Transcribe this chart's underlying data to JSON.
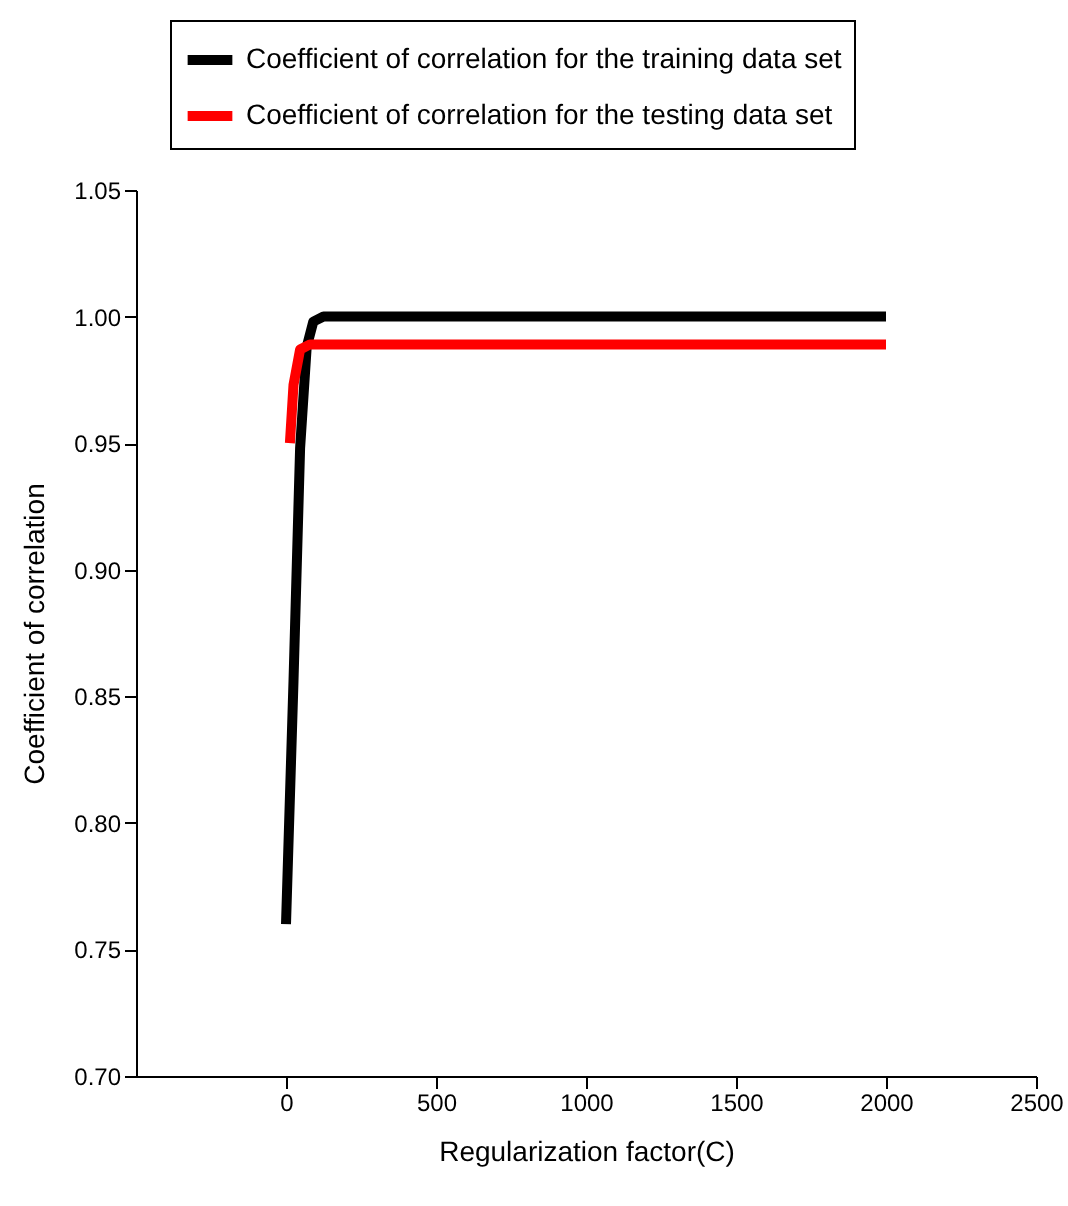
{
  "chart_data": {
    "type": "line",
    "xlabel": "Regularization factor(C)",
    "ylabel": "Coefficient of correlation",
    "series": [
      {
        "name": "Coefficient of correlation for the training data set",
        "color": "#000000",
        "x": [
          0,
          25,
          47,
          69,
          91,
          125,
          2000
        ],
        "values": [
          0.76,
          0.856,
          0.948,
          0.988,
          0.998,
          1.0,
          1.0
        ]
      },
      {
        "name": "Coefficient of correlation for the testing data set",
        "color": "#ff0000",
        "x": [
          13,
          25,
          47,
          80,
          2000
        ],
        "values": [
          0.95,
          0.973,
          0.987,
          0.989,
          0.989
        ]
      }
    ],
    "xlim": [
      -500,
      2500
    ],
    "xticks": [
      0,
      500,
      1000,
      1500,
      2000,
      2500
    ],
    "ylim": [
      0.7,
      1.05
    ],
    "yticks": [
      {
        "value": 0.7,
        "label": "0.70"
      },
      {
        "value": 0.75,
        "label": "0.75"
      },
      {
        "value": 0.8,
        "label": "0.80"
      },
      {
        "value": 0.85,
        "label": "0.85"
      },
      {
        "value": 0.9,
        "label": "0.90"
      },
      {
        "value": 0.95,
        "label": "0.95"
      },
      {
        "value": 1.0,
        "label": "1.00"
      },
      {
        "value": 1.05,
        "label": "1.05"
      }
    ],
    "grid": false,
    "legend": "top",
    "marker": "none",
    "line_style": "solid"
  }
}
